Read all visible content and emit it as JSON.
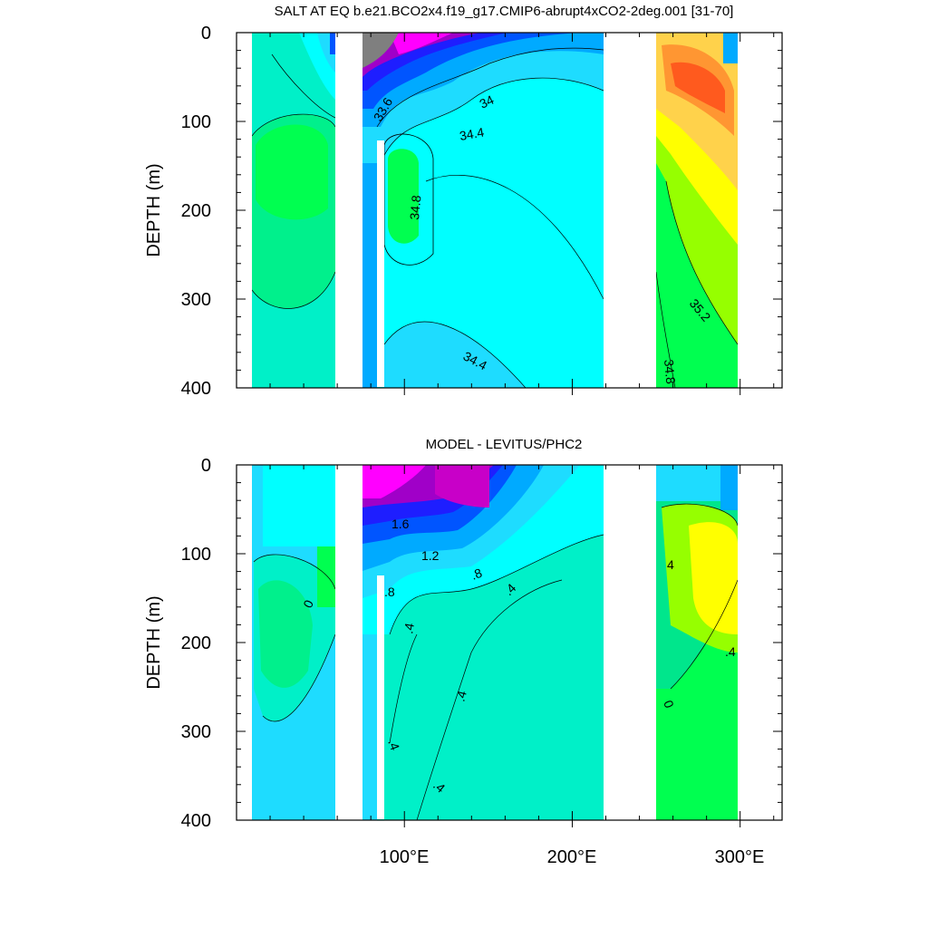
{
  "chart_data": [
    {
      "type": "heatmap",
      "title": "SALT AT EQ b.e21.BCO2x4.f19_g17.CMIP6-abrupt4xCO2-2deg.001 [31-70]",
      "ylabel": "DEPTH (m)",
      "xlabel": "",
      "ylim": [
        400,
        0
      ],
      "xlim": [
        0,
        325
      ],
      "y_ticks": [
        "0",
        "100",
        "200",
        "300",
        "400"
      ],
      "x_ticks": [
        100,
        200,
        300
      ],
      "contour_labels": [
        "33.6",
        "34",
        "34.4",
        "34.8",
        "34.4",
        "35.2",
        "34.8"
      ],
      "land_gaps_lon": [
        [
          60,
          76
        ],
        [
          85,
          88
        ],
        [
          220,
          252
        ]
      ],
      "palette": [
        "#7f7f7f",
        "#a000c8",
        "#ff00ff",
        "#1e1eff",
        "#0055ff",
        "#00aaff",
        "#1edcff",
        "#00ffff",
        "#00f0c8",
        "#00ff50",
        "#96ff00",
        "#ffff00",
        "#ffd24b",
        "#ff9632",
        "#ff5a1e"
      ]
    },
    {
      "type": "heatmap",
      "title": "MODEL - LEVITUS/PHC2",
      "ylabel": "DEPTH (m)",
      "xlabel": "",
      "ylim": [
        400,
        0
      ],
      "xlim": [
        0,
        325
      ],
      "y_ticks": [
        "0",
        "100",
        "200",
        "300",
        "400"
      ],
      "x_ticks": [
        100,
        200,
        300
      ],
      "x_tick_labels": [
        "100°E",
        "200°E",
        "300°E"
      ],
      "contour_labels": [
        "1.6",
        "1.2",
        ".8",
        ".4",
        ".8",
        "0",
        ".4",
        ".4",
        ".4",
        ".4",
        "4",
        "0",
        ".4"
      ],
      "land_gaps_lon": [
        [
          60,
          76
        ],
        [
          85,
          88
        ],
        [
          220,
          252
        ]
      ]
    }
  ]
}
